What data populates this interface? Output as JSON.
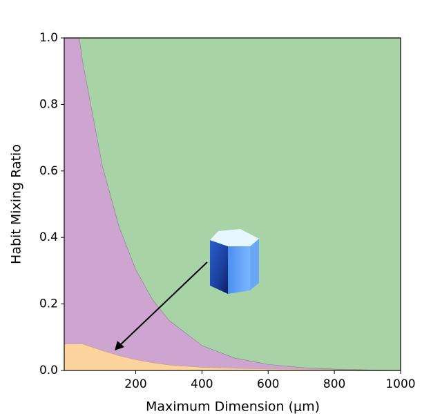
{
  "chart_data": {
    "type": "stacked_area",
    "x_label": "Maximum Dimension (μm)",
    "y_label": "Habit Mixing Ratio",
    "x": [
      -16,
      30,
      40,
      100,
      150,
      200,
      250,
      300,
      400,
      500,
      600,
      700,
      800,
      900,
      1000
    ],
    "series": [
      {
        "color": "#fdd49e",
        "edge": "#c9a074",
        "values": [
          0.08,
          0.08,
          0.08,
          0.06,
          0.045,
          0.033,
          0.024,
          0.017,
          0.01,
          0.007,
          0.005,
          0.004,
          0.003,
          0.002,
          0.001
        ]
      },
      {
        "color": "#cea5d1",
        "edge": "#7f7f7f",
        "values": [
          0.92,
          0.92,
          0.85,
          0.554,
          0.388,
          0.272,
          0.191,
          0.135,
          0.0654,
          0.0305,
          0.0138,
          0.0054,
          0.0017,
          0.0003,
          0.0002
        ]
      },
      {
        "color": "#a8d3a7",
        "edge": "#a8d3a7",
        "values": [
          0,
          0,
          0.07,
          0.386,
          0.567,
          0.695,
          0.785,
          0.848,
          0.9246,
          0.9625,
          0.9812,
          0.9906,
          0.9953,
          0.9977,
          0.9988
        ]
      }
    ],
    "xlim": [
      -16,
      1000
    ],
    "ylim": [
      0,
      1
    ],
    "xticks": [
      200,
      400,
      600,
      800,
      1000
    ],
    "yticks": [
      {
        "value": 0,
        "label": "0.0"
      },
      {
        "value": 0.2,
        "label": "0.2"
      },
      {
        "value": 0.4,
        "label": "0.4"
      },
      {
        "value": 0.6,
        "label": "0.6"
      },
      {
        "value": 0.8,
        "label": "0.8"
      },
      {
        "value": 1,
        "label": "1.0"
      }
    ]
  }
}
